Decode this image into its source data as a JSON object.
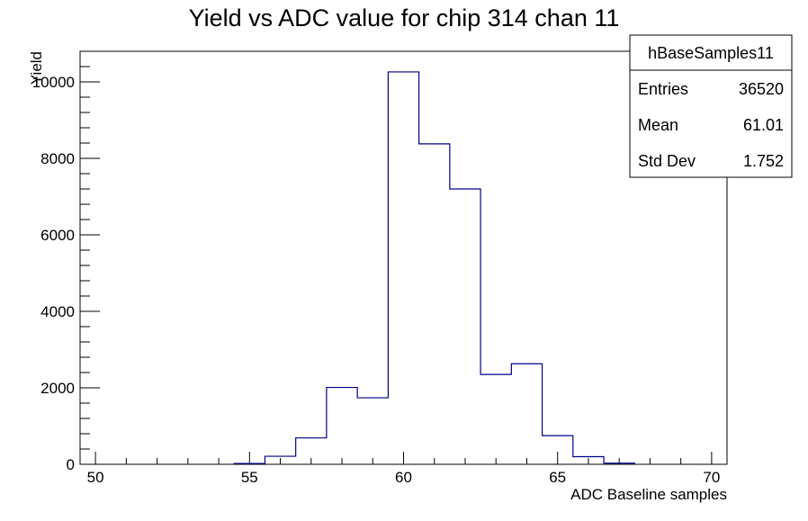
{
  "chart_data": {
    "type": "histogram",
    "title": "Yield vs ADC value for chip 314 chan 11",
    "xlabel": "ADC Baseline samples",
    "ylabel": "Yield",
    "xlim": [
      49.5,
      70.5
    ],
    "ylim": [
      0,
      10800
    ],
    "x_ticks": [
      50,
      55,
      60,
      65,
      70
    ],
    "y_ticks": [
      0,
      2000,
      4000,
      6000,
      8000,
      10000
    ],
    "grid": false,
    "line_color": "#00008b",
    "bins": [
      {
        "x_low": 54.5,
        "x_high": 55.5,
        "value": 20
      },
      {
        "x_low": 55.5,
        "x_high": 56.5,
        "value": 210
      },
      {
        "x_low": 56.5,
        "x_high": 57.5,
        "value": 690
      },
      {
        "x_low": 57.5,
        "x_high": 58.5,
        "value": 2010
      },
      {
        "x_low": 58.5,
        "x_high": 59.5,
        "value": 1740
      },
      {
        "x_low": 59.5,
        "x_high": 60.5,
        "value": 10260
      },
      {
        "x_low": 60.5,
        "x_high": 61.5,
        "value": 8380
      },
      {
        "x_low": 61.5,
        "x_high": 62.5,
        "value": 7200
      },
      {
        "x_low": 62.5,
        "x_high": 63.5,
        "value": 2350
      },
      {
        "x_low": 63.5,
        "x_high": 64.5,
        "value": 2630
      },
      {
        "x_low": 64.5,
        "x_high": 65.5,
        "value": 750
      },
      {
        "x_low": 65.5,
        "x_high": 66.5,
        "value": 200
      },
      {
        "x_low": 66.5,
        "x_high": 67.5,
        "value": 30
      }
    ],
    "stats_box": {
      "name": "hBaseSamples11",
      "rows": [
        {
          "label": "Entries",
          "value": "36520"
        },
        {
          "label": "Mean",
          "value": "61.01"
        },
        {
          "label": "Std Dev",
          "value": "1.752"
        }
      ]
    }
  }
}
